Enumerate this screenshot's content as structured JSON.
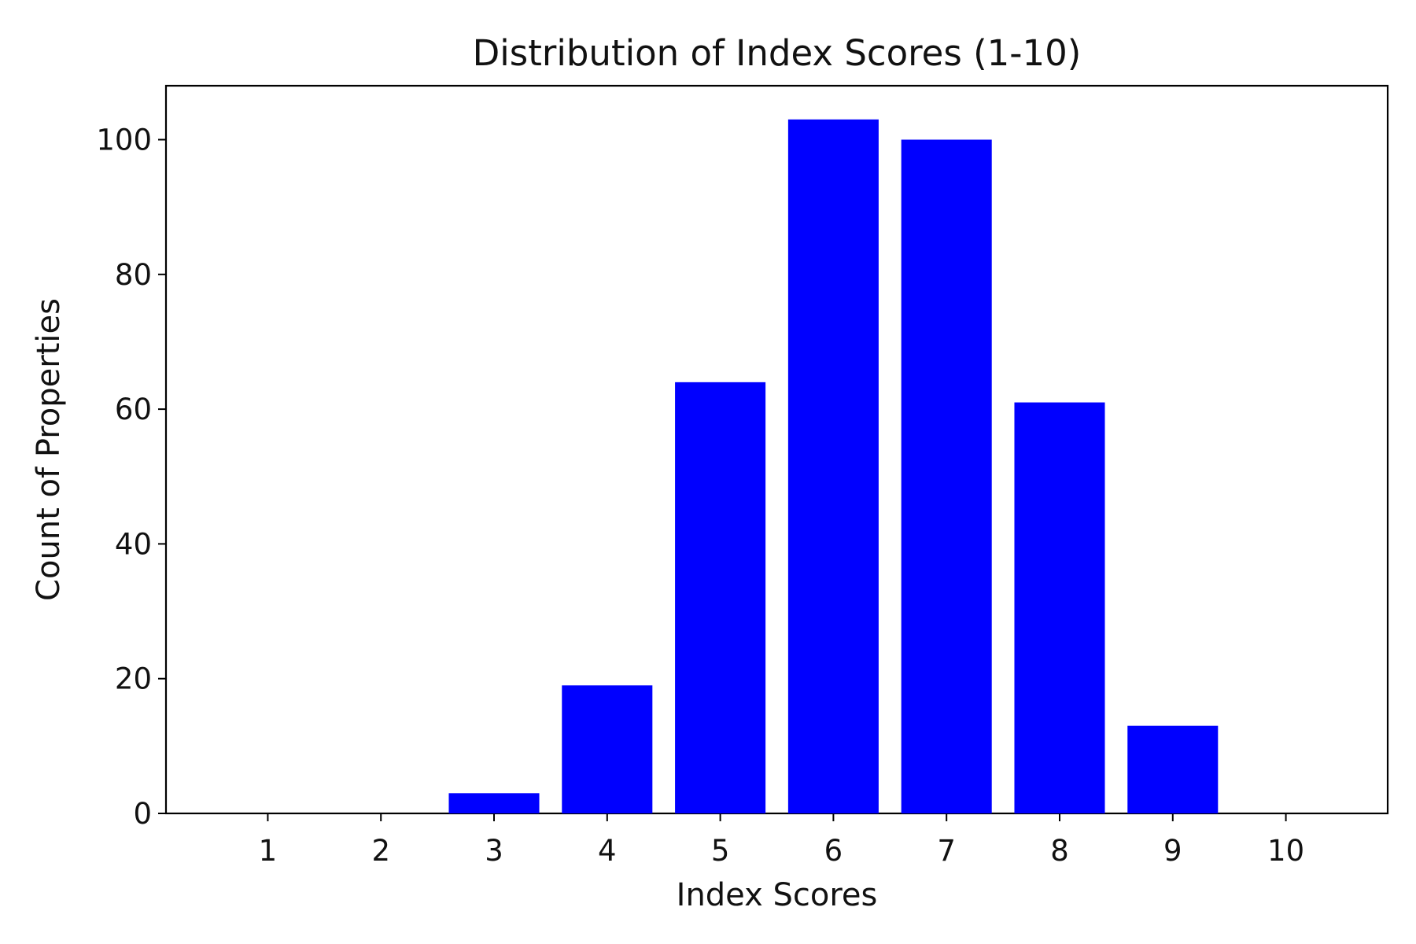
{
  "chart_data": {
    "type": "bar",
    "title": "Distribution of Index Scores (1-10)",
    "xlabel": "Index Scores",
    "ylabel": "Count of Properties",
    "categories": [
      "1",
      "2",
      "3",
      "4",
      "5",
      "6",
      "7",
      "8",
      "9",
      "10"
    ],
    "values": [
      0,
      0,
      3,
      19,
      64,
      103,
      100,
      61,
      13,
      0
    ],
    "xlim": [
      0.1,
      10.9
    ],
    "ylim": [
      0,
      108
    ],
    "yticks": [
      0,
      20,
      40,
      60,
      80,
      100
    ],
    "grid": false,
    "legend": "none",
    "bar_color": "#0000ff",
    "axis_color": "#000000"
  }
}
